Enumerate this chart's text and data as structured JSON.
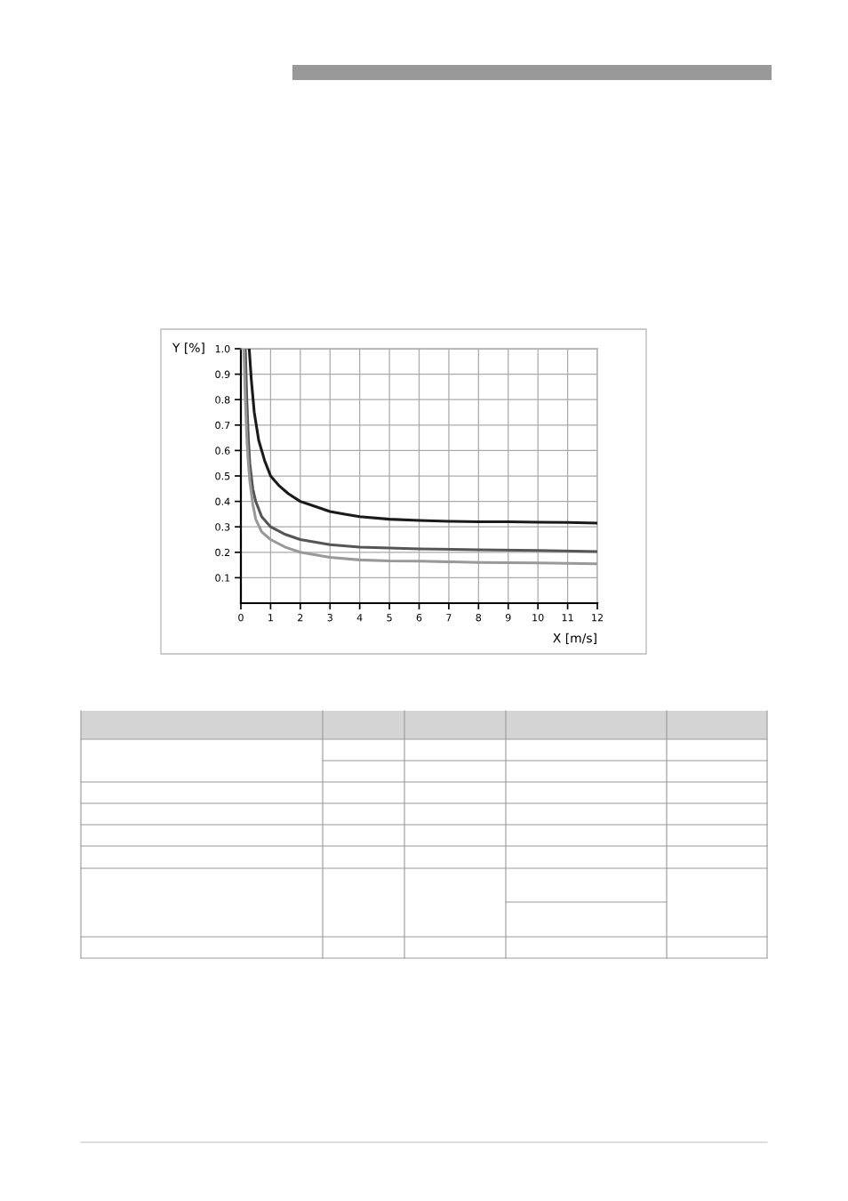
{
  "chart_data": {
    "type": "line",
    "xlabel": "X [m/s]",
    "ylabel": "Y [%]",
    "xlim": [
      0,
      12
    ],
    "ylim": [
      0,
      1.0
    ],
    "xticks": [
      {
        "value": 0,
        "label": "0"
      },
      1,
      2,
      3,
      4,
      5,
      6,
      7,
      8,
      9,
      10,
      11,
      12
    ],
    "yticks": [
      0.1,
      0.2,
      0.3,
      0.4,
      0.5,
      0.6,
      0.7,
      0.8,
      0.9,
      {
        "value": 1.0,
        "label": "1.0"
      }
    ],
    "grid": true,
    "marker": "none",
    "line_style": "solid",
    "series": [
      {
        "color": "#1a1a1a",
        "x": [
          0.28,
          0.35,
          0.45,
          0.6,
          0.8,
          1,
          1.3,
          1.6,
          2,
          2.5,
          3,
          3.5,
          4,
          5,
          6,
          7,
          8,
          9,
          10,
          11,
          12
        ],
        "values": [
          1.0,
          0.88,
          0.75,
          0.64,
          0.56,
          0.5,
          0.46,
          0.43,
          0.4,
          0.38,
          0.36,
          0.35,
          0.34,
          0.33,
          0.325,
          0.322,
          0.32,
          0.32,
          0.318,
          0.317,
          0.315
        ]
      },
      {
        "color": "#555555",
        "x": [
          0.15,
          0.2,
          0.25,
          0.3,
          0.4,
          0.5,
          0.7,
          1,
          1.5,
          2,
          3,
          4,
          5,
          6,
          8,
          10,
          12
        ],
        "values": [
          1.0,
          0.8,
          0.65,
          0.55,
          0.45,
          0.4,
          0.34,
          0.3,
          0.27,
          0.25,
          0.23,
          0.22,
          0.217,
          0.213,
          0.21,
          0.207,
          0.203
        ]
      },
      {
        "color": "#999999",
        "x": [
          0.1,
          0.15,
          0.2,
          0.25,
          0.3,
          0.4,
          0.5,
          0.7,
          1,
          1.5,
          2,
          3,
          4,
          5,
          6,
          8,
          10,
          12
        ],
        "values": [
          1.0,
          0.8,
          0.65,
          0.55,
          0.48,
          0.39,
          0.33,
          0.28,
          0.25,
          0.22,
          0.2,
          0.18,
          0.17,
          0.166,
          0.165,
          0.16,
          0.158,
          0.155
        ]
      }
    ]
  }
}
